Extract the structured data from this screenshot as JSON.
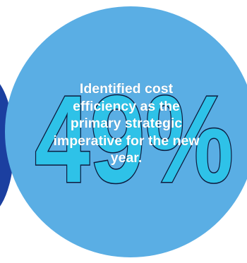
{
  "stat": {
    "value": "49%"
  },
  "blurb": {
    "text": "Identified cost efficiency as the primary strategic imperative for the new year."
  },
  "colors": {
    "main_circle": "#5aaee4",
    "side_circle": "#1b3fa0",
    "stat_fill": "#2ec2e8",
    "stat_outline": "#0d1b3e",
    "text": "#ffffff"
  }
}
